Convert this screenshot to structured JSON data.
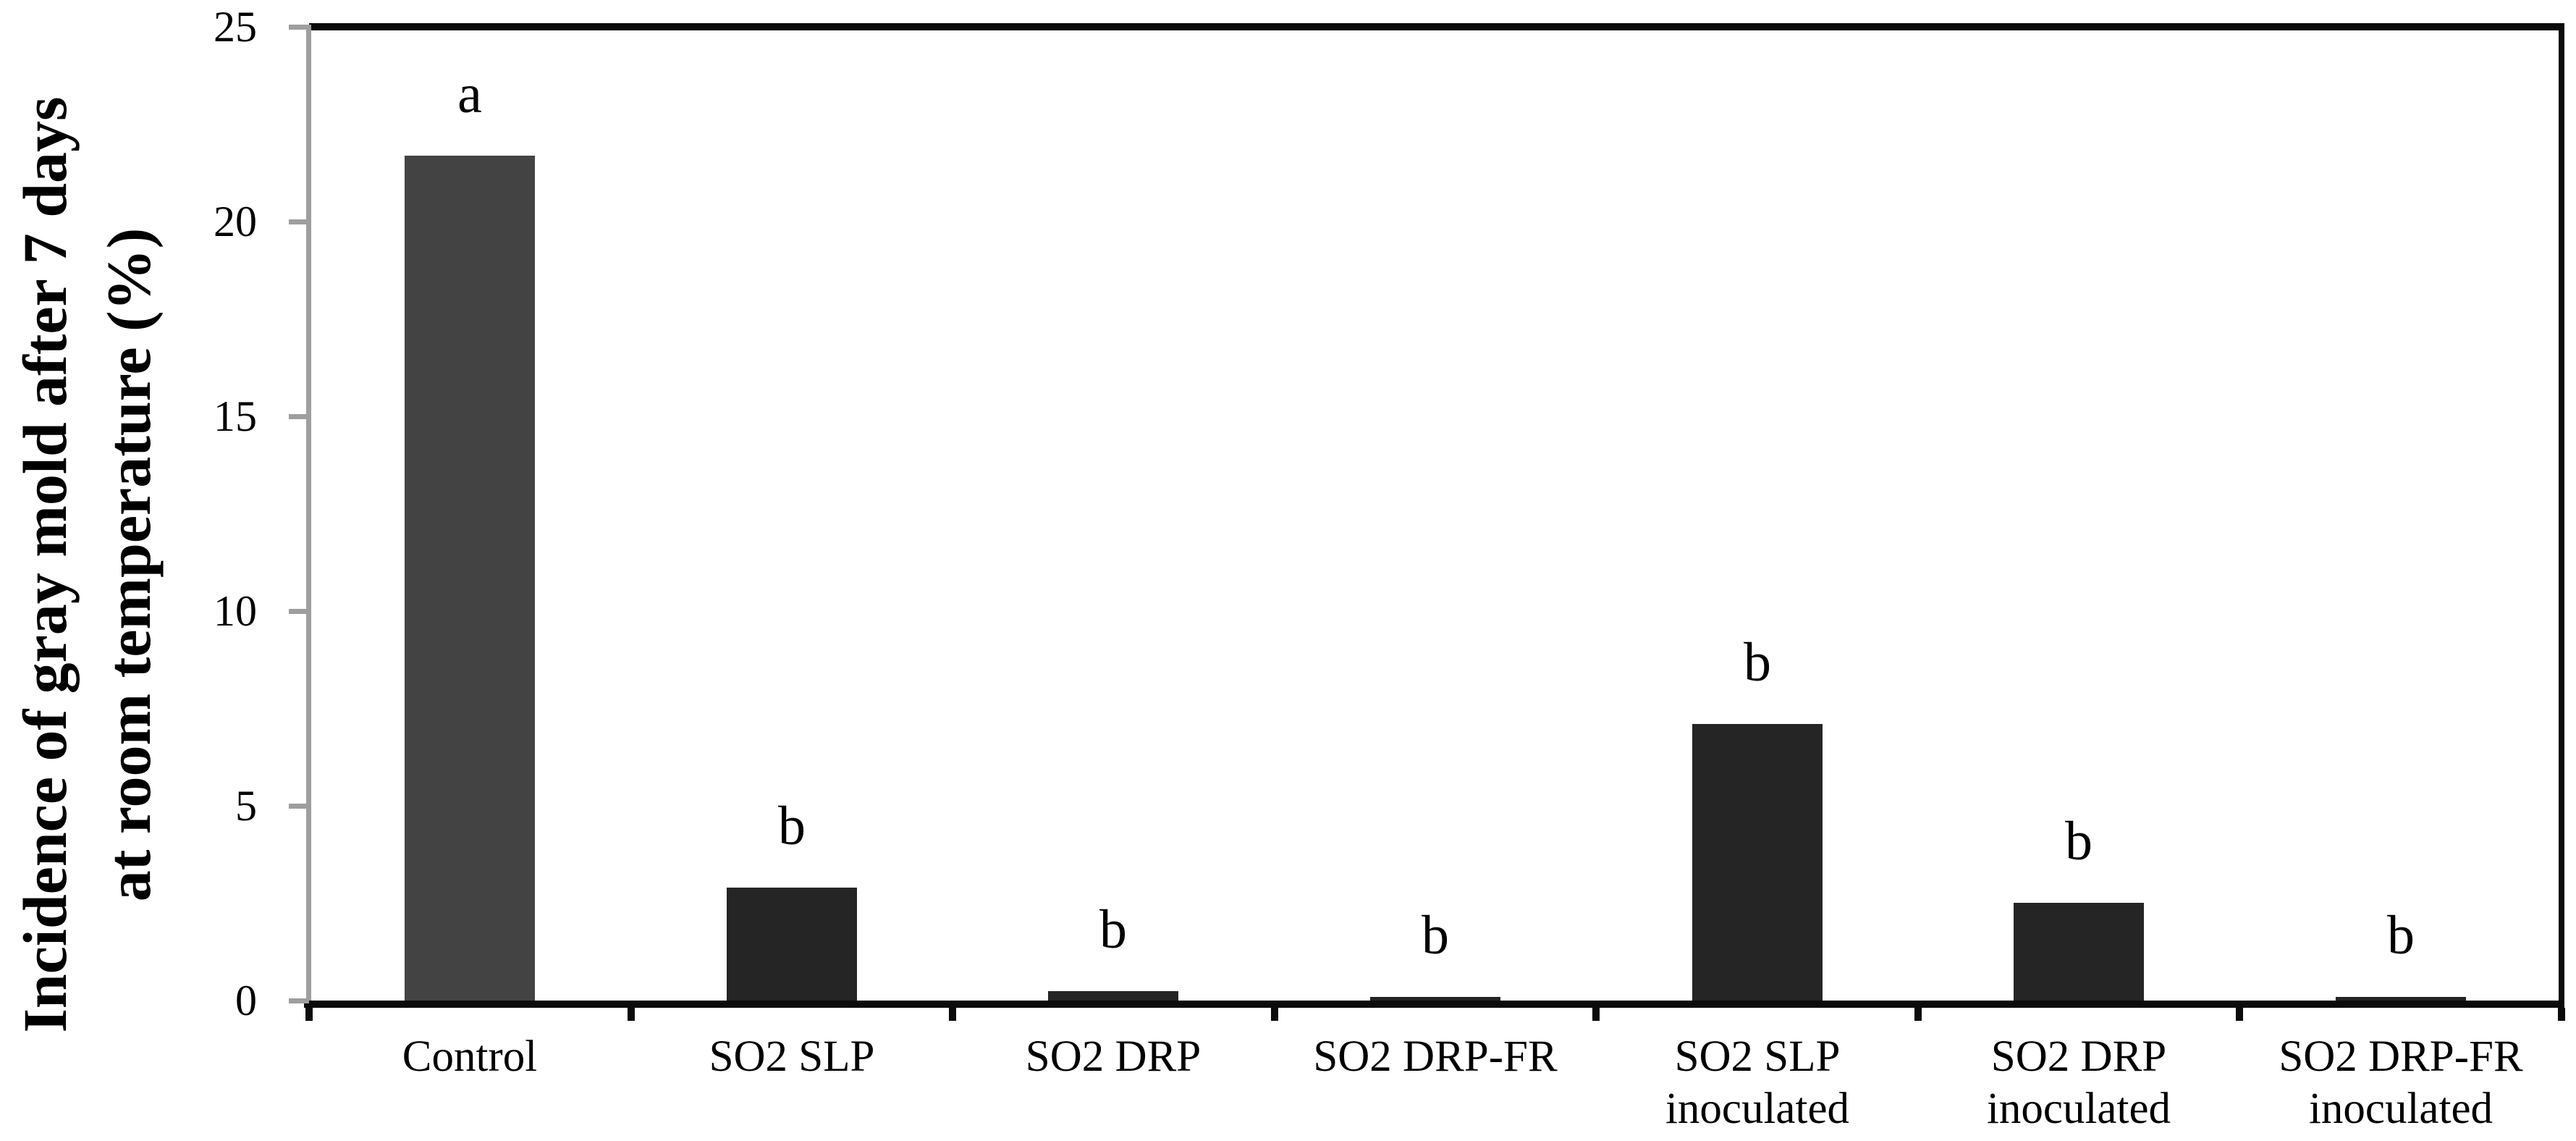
{
  "chart_data": {
    "type": "bar",
    "title": "",
    "xlabel": "",
    "ylabel": "Incidence of gray mold after 7 days at room temperature (%)",
    "ylabel_lines": [
      "Incidence of gray mold after 7 days",
      "at room temperature (%)"
    ],
    "categories": [
      "Control",
      "SO2 SLP",
      "SO2 DRP",
      "SO2 DRP-FR",
      "SO2 SLP inoculated",
      "SO2 DRP inoculated",
      "SO2 DRP-FR inoculated"
    ],
    "category_label_lines": [
      [
        "Control"
      ],
      [
        "SO2 SLP"
      ],
      [
        "SO2 DRP"
      ],
      [
        "SO2 DRP-FR"
      ],
      [
        "SO2 SLP",
        "inoculated"
      ],
      [
        "SO2 DRP",
        "inoculated"
      ],
      [
        "SO2 DRP-FR",
        "inoculated"
      ]
    ],
    "values": [
      21.7,
      2.9,
      0.25,
      0.1,
      7.1,
      2.5,
      0.1
    ],
    "significance_letters": [
      "a",
      "b",
      "b",
      "b",
      "b",
      "b",
      "b"
    ],
    "bar_colors": [
      "#434343",
      "#252525",
      "#252525",
      "#252525",
      "#252525",
      "#252525",
      "#252525"
    ],
    "ylim": [
      0,
      25
    ],
    "yticks": [
      0,
      5,
      10,
      15,
      20,
      25
    ],
    "grid": false,
    "legend_position": "none",
    "colors": {
      "background": "#ffffff",
      "frame": "#0b0b0b",
      "y_axis_line": "#9e9e9e",
      "text": "#000000"
    }
  }
}
